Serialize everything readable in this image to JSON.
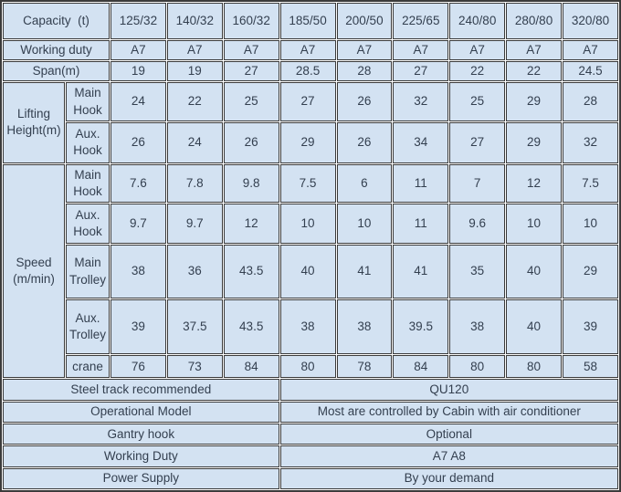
{
  "colors": {
    "cell_bg": "#d3e2f2",
    "border": "#3a3a3a",
    "text": "#333f4f"
  },
  "table": {
    "capacity_row": {
      "label": "Capacity  (t)",
      "values": [
        "125/32",
        "140/32",
        "160/32",
        "185/50",
        "200/50",
        "225/65",
        "240/80",
        "280/80",
        "320/80"
      ]
    },
    "working_duty_row": {
      "label": "Working duty",
      "values": [
        "A7",
        "A7",
        "A7",
        "A7",
        "A7",
        "A7",
        "A7",
        "A7",
        "A7"
      ]
    },
    "span_row": {
      "label": "Span(m)",
      "values": [
        "19",
        "19",
        "27",
        "28.5",
        "28",
        "27",
        "22",
        "22",
        "24.5"
      ]
    },
    "lifting_height": {
      "label": "Lifting Height(m)",
      "main_hook": {
        "label": "Main Hook",
        "values": [
          "24",
          "22",
          "25",
          "27",
          "26",
          "32",
          "25",
          "29",
          "28"
        ]
      },
      "aux_hook": {
        "label": "Aux. Hook",
        "values": [
          "26",
          "24",
          "26",
          "29",
          "26",
          "34",
          "27",
          "29",
          "32"
        ]
      }
    },
    "speed": {
      "label": "Speed (m/min)",
      "main_hook": {
        "label": "Main Hook",
        "values": [
          "7.6",
          "7.8",
          "9.8",
          "7.5",
          "6",
          "11",
          "7",
          "12",
          "7.5"
        ]
      },
      "aux_hook": {
        "label": "Aux. Hook",
        "values": [
          "9.7",
          "9.7",
          "12",
          "10",
          "10",
          "11",
          "9.6",
          "10",
          "10"
        ]
      },
      "main_trolley": {
        "label": "Main Trolley",
        "values": [
          "38",
          "36",
          "43.5",
          "40",
          "41",
          "41",
          "35",
          "40",
          "29"
        ]
      },
      "aux_trolley": {
        "label": "Aux. Trolley",
        "values": [
          "39",
          "37.5",
          "43.5",
          "38",
          "38",
          "39.5",
          "38",
          "40",
          "39"
        ]
      },
      "crane": {
        "label": "crane",
        "values": [
          "76",
          "73",
          "84",
          "80",
          "78",
          "84",
          "80",
          "80",
          "58"
        ]
      }
    },
    "footer_rows": [
      {
        "label": "Steel track recommended",
        "value": "QU120"
      },
      {
        "label": "Operational Model",
        "value": "Most are controlled by Cabin with air conditioner"
      },
      {
        "label": "Gantry hook",
        "value": "Optional"
      },
      {
        "label": "Working Duty",
        "value": "A7 A8"
      },
      {
        "label": "Power Supply",
        "value": "By your demand"
      }
    ]
  }
}
